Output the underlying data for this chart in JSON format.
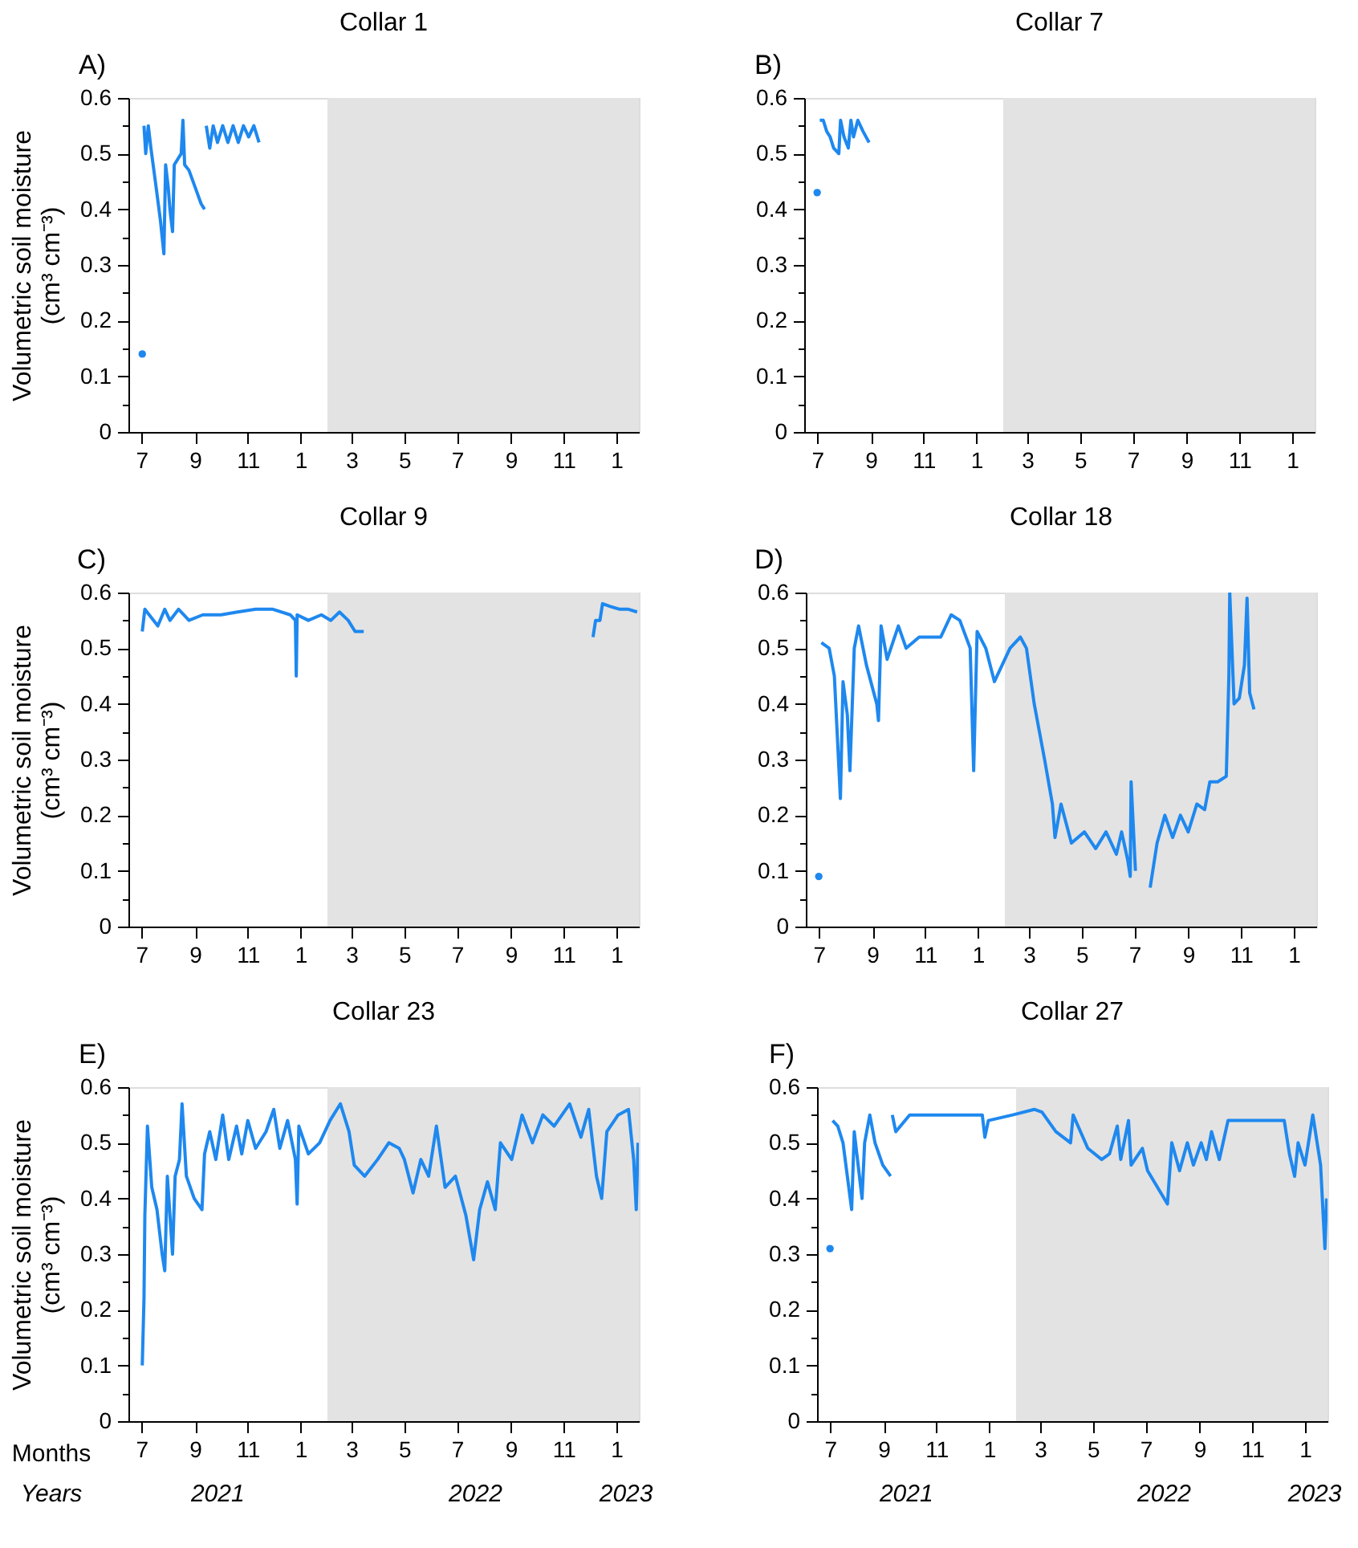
{
  "chart_data": [
    {
      "type": "line",
      "title": "Collar 1",
      "annotations": [
        "A)"
      ],
      "ylabel": "Volumetric soil moisture\n(cm³ cm⁻³)",
      "series": [
        {
          "type": "scatter",
          "color": "#1e88ef",
          "x": [
            "2021-07-02"
          ],
          "values": [
            0.14
          ]
        },
        {
          "type": "line",
          "color": "#1e88ef",
          "x": [
            "2021-07-04",
            "2021-07-06",
            "2021-07-09",
            "2021-07-12",
            "2021-07-18",
            "2021-07-23",
            "2021-07-27",
            "2021-07-29",
            "2021-08-01",
            "2021-08-03",
            "2021-08-06",
            "2021-08-08",
            "2021-08-12",
            "2021-08-16",
            "2021-08-18",
            "2021-08-20",
            "2021-08-25",
            "2021-09-01",
            "2021-09-08",
            "2021-09-12",
            "2021-09-13",
            "2021-09-14",
            "2021-09-18",
            "2021-09-22",
            "2021-09-27",
            "2021-10-03",
            "2021-10-09",
            "2021-10-15",
            "2021-10-21",
            "2021-10-27",
            "2021-11-02",
            "2021-11-08",
            "2021-11-14"
          ],
          "values": [
            0.55,
            0.5,
            0.55,
            0.51,
            0.44,
            0.38,
            0.32,
            0.48,
            0.44,
            0.4,
            0.36,
            0.48,
            0.49,
            0.5,
            0.56,
            0.48,
            0.47,
            0.44,
            0.41,
            0.4,
            null,
            0.55,
            0.51,
            0.55,
            0.52,
            0.55,
            0.52,
            0.55,
            0.52,
            0.55,
            0.53,
            0.55,
            0.52
          ]
        }
      ],
      "bands": [
        {
          "axis": "x",
          "from": "2022-02-01",
          "to": "2023-01-27",
          "color": "#e3e3e3"
        }
      ],
      "xlim": [
        "2021-06-16",
        "2023-01-27"
      ],
      "ylim": [
        0,
        0.6
      ],
      "xticks": [
        {
          "value": "2021-07-01",
          "label": "7"
        },
        {
          "value": "2021-09-01",
          "label": "9"
        },
        {
          "value": "2021-11-01",
          "label": "11"
        },
        {
          "value": "2022-01-01",
          "label": "1"
        },
        {
          "value": "2022-03-01",
          "label": "3"
        },
        {
          "value": "2022-05-01",
          "label": "5"
        },
        {
          "value": "2022-07-01",
          "label": "7"
        },
        {
          "value": "2022-09-01",
          "label": "9"
        },
        {
          "value": "2022-11-01",
          "label": "11"
        },
        {
          "value": "2023-01-01",
          "label": "1"
        }
      ],
      "yticks": [
        0,
        {
          "value": 0.05,
          "label": null
        },
        0.1,
        {
          "value": 0.15,
          "label": null
        },
        0.2,
        {
          "value": 0.25,
          "label": null
        },
        0.3,
        {
          "value": 0.35,
          "label": null
        },
        0.4,
        {
          "value": 0.45,
          "label": null
        },
        0.5,
        {
          "value": 0.55,
          "label": null
        },
        0.6
      ]
    },
    {
      "type": "line",
      "title": "Collar 7",
      "annotations": [
        "B)"
      ],
      "series": [
        {
          "type": "scatter",
          "color": "#1e88ef",
          "x": [
            "2021-07-01"
          ],
          "values": [
            0.43
          ]
        },
        {
          "type": "line",
          "color": "#1e88ef",
          "x": [
            "2021-07-04",
            "2021-07-08",
            "2021-07-12",
            "2021-07-16",
            "2021-07-20",
            "2021-07-26",
            "2021-07-28",
            "2021-08-01",
            "2021-08-06",
            "2021-08-09",
            "2021-08-12",
            "2021-08-17",
            "2021-08-23",
            "2021-08-30"
          ],
          "values": [
            0.56,
            0.56,
            0.54,
            0.53,
            0.51,
            0.5,
            0.56,
            0.53,
            0.51,
            0.56,
            0.53,
            0.56,
            0.54,
            0.52
          ]
        }
      ],
      "bands": [
        {
          "axis": "x",
          "from": "2022-02-01",
          "to": "2023-01-27",
          "color": "#e3e3e3"
        }
      ],
      "xlim": [
        "2021-06-16",
        "2023-01-27"
      ],
      "ylim": [
        0,
        0.6
      ],
      "xticks": [
        {
          "value": "2021-07-01",
          "label": "7"
        },
        {
          "value": "2021-09-01",
          "label": "9"
        },
        {
          "value": "2021-11-01",
          "label": "11"
        },
        {
          "value": "2022-01-01",
          "label": "1"
        },
        {
          "value": "2022-03-01",
          "label": "3"
        },
        {
          "value": "2022-05-01",
          "label": "5"
        },
        {
          "value": "2022-07-01",
          "label": "7"
        },
        {
          "value": "2022-09-01",
          "label": "9"
        },
        {
          "value": "2022-11-01",
          "label": "11"
        },
        {
          "value": "2023-01-01",
          "label": "1"
        }
      ],
      "yticks": [
        0,
        {
          "value": 0.05,
          "label": null
        },
        0.1,
        {
          "value": 0.15,
          "label": null
        },
        0.2,
        {
          "value": 0.25,
          "label": null
        },
        0.3,
        {
          "value": 0.35,
          "label": null
        },
        0.4,
        {
          "value": 0.45,
          "label": null
        },
        0.5,
        {
          "value": 0.55,
          "label": null
        },
        0.6
      ]
    },
    {
      "type": "line",
      "title": "Collar 9",
      "annotations": [
        "C)"
      ],
      "ylabel": "Volumetric soil moisture\n(cm³ cm⁻³)",
      "series": [
        {
          "type": "line",
          "color": "#1e88ef",
          "x": [
            "2021-07-02",
            "2021-07-05",
            "2021-07-10",
            "2021-07-20",
            "2021-07-28",
            "2021-08-03",
            "2021-08-13",
            "2021-08-25",
            "2021-09-10",
            "2021-10-01",
            "2021-10-20",
            "2021-11-10",
            "2021-11-30",
            "2021-12-20",
            "2021-12-26",
            "2021-12-27",
            "2021-12-28",
            "2022-01-10",
            "2022-01-25",
            "2022-02-05",
            "2022-02-15",
            "2022-02-25",
            "2022-03-05",
            "2022-03-15",
            "2022-03-16",
            "2022-12-05",
            "2022-12-08",
            "2022-12-13",
            "2022-12-16",
            "2022-12-25",
            "2023-01-05",
            "2023-01-15",
            "2023-01-25"
          ],
          "values": [
            0.53,
            0.57,
            0.56,
            0.54,
            0.57,
            0.55,
            0.57,
            0.55,
            0.56,
            0.56,
            0.565,
            0.57,
            0.57,
            0.56,
            0.55,
            0.45,
            0.56,
            0.55,
            0.56,
            0.55,
            0.565,
            0.55,
            0.53,
            0.53,
            null,
            0.52,
            0.55,
            0.55,
            0.58,
            0.575,
            0.57,
            0.57,
            0.565
          ]
        }
      ],
      "bands": [
        {
          "axis": "x",
          "from": "2022-02-01",
          "to": "2023-01-27",
          "color": "#e3e3e3"
        }
      ],
      "xlim": [
        "2021-06-16",
        "2023-01-27"
      ],
      "ylim": [
        0,
        0.6
      ],
      "xticks": [
        {
          "value": "2021-07-01",
          "label": "7"
        },
        {
          "value": "2021-09-01",
          "label": "9"
        },
        {
          "value": "2021-11-01",
          "label": "11"
        },
        {
          "value": "2022-01-01",
          "label": "1"
        },
        {
          "value": "2022-03-01",
          "label": "3"
        },
        {
          "value": "2022-05-01",
          "label": "5"
        },
        {
          "value": "2022-07-01",
          "label": "7"
        },
        {
          "value": "2022-09-01",
          "label": "9"
        },
        {
          "value": "2022-11-01",
          "label": "11"
        },
        {
          "value": "2023-01-01",
          "label": "1"
        }
      ],
      "yticks": [
        0,
        {
          "value": 0.05,
          "label": null
        },
        0.1,
        {
          "value": 0.15,
          "label": null
        },
        0.2,
        {
          "value": 0.25,
          "label": null
        },
        0.3,
        {
          "value": 0.35,
          "label": null
        },
        0.4,
        {
          "value": 0.45,
          "label": null
        },
        0.5,
        {
          "value": 0.55,
          "label": null
        },
        0.6
      ]
    },
    {
      "type": "line",
      "title": "Collar 18",
      "annotations": [
        "D)"
      ],
      "series": [
        {
          "type": "scatter",
          "color": "#1e88ef",
          "x": [
            "2021-07-01"
          ],
          "values": [
            0.09
          ]
        },
        {
          "type": "line",
          "color": "#1e88ef",
          "x": [
            "2021-07-04",
            "2021-07-13",
            "2021-07-19",
            "2021-07-26",
            "2021-07-29",
            "2021-08-03",
            "2021-08-06",
            "2021-08-11",
            "2021-08-16",
            "2021-08-25",
            "2021-09-06",
            "2021-09-08",
            "2021-09-11",
            "2021-09-18",
            "2021-10-01",
            "2021-10-10",
            "2021-10-25",
            "2021-11-19",
            "2021-12-01",
            "2021-12-11",
            "2021-12-23",
            "2021-12-27",
            "2021-12-31",
            "2022-01-10",
            "2022-01-20",
            "2022-01-29",
            "2022-02-07",
            "2022-02-19",
            "2022-02-26",
            "2022-03-07",
            "2022-03-19",
            "2022-03-28",
            "2022-03-31",
            "2022-04-07",
            "2022-04-19",
            "2022-05-04",
            "2022-05-17",
            "2022-05-29",
            "2022-06-10",
            "2022-06-16",
            "2022-06-23",
            "2022-06-26",
            "2022-06-27",
            "2022-07-02",
            "2022-07-10",
            "2022-07-19",
            "2022-07-27",
            "2022-08-05",
            "2022-08-14",
            "2022-08-23",
            "2022-09-01",
            "2022-09-11",
            "2022-09-20",
            "2022-09-26",
            "2022-10-05",
            "2022-10-15",
            "2022-10-18",
            "2022-10-19",
            "2022-10-24",
            "2022-10-30",
            "2022-11-05",
            "2022-11-08",
            "2022-11-11",
            "2022-11-16"
          ],
          "values": [
            0.51,
            0.5,
            0.45,
            0.23,
            0.44,
            0.38,
            0.28,
            0.5,
            0.54,
            0.47,
            0.4,
            0.37,
            0.54,
            0.48,
            0.54,
            0.5,
            0.52,
            0.52,
            0.56,
            0.55,
            0.5,
            0.28,
            0.53,
            0.5,
            0.44,
            0.47,
            0.5,
            0.52,
            0.5,
            0.4,
            0.3,
            0.22,
            0.16,
            0.22,
            0.15,
            0.17,
            0.14,
            0.17,
            0.13,
            0.17,
            0.12,
            0.09,
            0.26,
            0.1,
            null,
            0.07,
            0.15,
            0.2,
            0.16,
            0.2,
            0.17,
            0.22,
            0.21,
            0.26,
            0.26,
            0.27,
            0.45,
            0.6,
            0.4,
            0.41,
            0.47,
            0.59,
            0.42,
            0.39
          ]
        }
      ],
      "bands": [
        {
          "axis": "x",
          "from": "2022-02-01",
          "to": "2023-01-27",
          "color": "#e3e3e3"
        }
      ],
      "xlim": [
        "2021-06-16",
        "2023-01-27"
      ],
      "ylim": [
        0,
        0.6
      ],
      "xticks": [
        {
          "value": "2021-07-01",
          "label": "7"
        },
        {
          "value": "2021-09-01",
          "label": "9"
        },
        {
          "value": "2021-11-01",
          "label": "11"
        },
        {
          "value": "2022-01-01",
          "label": "1"
        },
        {
          "value": "2022-03-01",
          "label": "3"
        },
        {
          "value": "2022-05-01",
          "label": "5"
        },
        {
          "value": "2022-07-01",
          "label": "7"
        },
        {
          "value": "2022-09-01",
          "label": "9"
        },
        {
          "value": "2022-11-01",
          "label": "11"
        },
        {
          "value": "2023-01-01",
          "label": "1"
        }
      ],
      "yticks": [
        0,
        {
          "value": 0.05,
          "label": null
        },
        0.1,
        {
          "value": 0.15,
          "label": null
        },
        0.2,
        {
          "value": 0.25,
          "label": null
        },
        0.3,
        {
          "value": 0.35,
          "label": null
        },
        0.4,
        {
          "value": 0.45,
          "label": null
        },
        0.5,
        {
          "value": 0.55,
          "label": null
        },
        0.6
      ]
    },
    {
      "type": "line",
      "title": "Collar 23",
      "annotations": [
        "E)",
        "Months",
        "Years",
        "2021",
        "2022",
        "2023"
      ],
      "ylabel": "Volumetric soil moisture\n(cm³ cm⁻³)",
      "series": [
        {
          "type": "line",
          "color": "#1e88ef",
          "x": [
            "2021-07-02",
            "2021-07-03",
            "2021-07-04",
            "2021-07-05",
            "2021-07-08",
            "2021-07-13",
            "2021-07-19",
            "2021-07-25",
            "2021-07-28",
            "2021-07-31",
            "2021-08-06",
            "2021-08-09",
            "2021-08-14",
            "2021-08-17",
            "2021-08-22",
            "2021-08-31",
            "2021-09-09",
            "2021-09-12",
            "2021-09-18",
            "2021-09-25",
            "2021-10-03",
            "2021-10-10",
            "2021-10-19",
            "2021-10-25",
            "2021-11-01",
            "2021-11-10",
            "2021-11-22",
            "2021-12-01",
            "2021-12-08",
            "2021-12-17",
            "2021-12-26",
            "2021-12-28",
            "2021-12-30",
            "2022-01-10",
            "2022-01-23",
            "2022-02-04",
            "2022-02-16",
            "2022-02-26",
            "2022-03-04",
            "2022-03-16",
            "2022-03-31",
            "2022-04-13",
            "2022-04-25",
            "2022-05-01",
            "2022-05-11",
            "2022-05-20",
            "2022-05-29",
            "2022-06-07",
            "2022-06-17",
            "2022-06-29",
            "2022-07-11",
            "2022-07-20",
            "2022-07-27",
            "2022-08-05",
            "2022-08-14",
            "2022-08-20",
            "2022-09-02",
            "2022-09-14",
            "2022-09-26",
            "2022-10-08",
            "2022-10-21",
            "2022-11-08",
            "2022-11-21",
            "2022-11-30",
            "2022-12-09",
            "2022-12-15",
            "2022-12-21",
            "2023-01-03",
            "2023-01-15",
            "2023-01-21",
            "2023-01-24",
            "2023-01-26"
          ],
          "values": [
            0.1,
            0.16,
            0.22,
            0.37,
            0.53,
            0.42,
            0.38,
            0.3,
            0.27,
            0.44,
            0.3,
            0.44,
            0.47,
            0.57,
            0.44,
            0.4,
            0.38,
            0.48,
            0.52,
            0.47,
            0.55,
            0.47,
            0.53,
            0.48,
            0.54,
            0.49,
            0.52,
            0.56,
            0.49,
            0.54,
            0.47,
            0.39,
            0.53,
            0.48,
            0.5,
            0.54,
            0.57,
            0.52,
            0.46,
            0.44,
            0.47,
            0.5,
            0.49,
            0.47,
            0.41,
            0.47,
            0.44,
            0.53,
            0.42,
            0.44,
            0.37,
            0.29,
            0.38,
            0.43,
            0.38,
            0.5,
            0.47,
            0.55,
            0.5,
            0.55,
            0.53,
            0.57,
            0.51,
            0.56,
            0.44,
            0.4,
            0.52,
            0.55,
            0.56,
            0.47,
            0.38,
            0.5
          ]
        }
      ],
      "bands": [
        {
          "axis": "x",
          "from": "2022-02-01",
          "to": "2023-01-27",
          "color": "#e3e3e3"
        }
      ],
      "xlim": [
        "2021-06-16",
        "2023-01-27"
      ],
      "ylim": [
        0,
        0.6
      ],
      "xticks": [
        {
          "value": "2021-07-01",
          "label": "7"
        },
        {
          "value": "2021-09-01",
          "label": "9"
        },
        {
          "value": "2021-11-01",
          "label": "11"
        },
        {
          "value": "2022-01-01",
          "label": "1"
        },
        {
          "value": "2022-03-01",
          "label": "3"
        },
        {
          "value": "2022-05-01",
          "label": "5"
        },
        {
          "value": "2022-07-01",
          "label": "7"
        },
        {
          "value": "2022-09-01",
          "label": "9"
        },
        {
          "value": "2022-11-01",
          "label": "11"
        },
        {
          "value": "2023-01-01",
          "label": "1"
        }
      ],
      "yticks": [
        0,
        {
          "value": 0.05,
          "label": null
        },
        0.1,
        {
          "value": 0.15,
          "label": null
        },
        0.2,
        {
          "value": 0.25,
          "label": null
        },
        0.3,
        {
          "value": 0.35,
          "label": null
        },
        0.4,
        {
          "value": 0.45,
          "label": null
        },
        0.5,
        {
          "value": 0.55,
          "label": null
        },
        0.6
      ]
    },
    {
      "type": "line",
      "title": "Collar 27",
      "annotations": [
        "F)",
        "2021",
        "2022",
        "2023"
      ],
      "series": [
        {
          "type": "scatter",
          "color": "#1e88ef",
          "x": [
            "2021-07-01"
          ],
          "values": [
            0.31
          ]
        },
        {
          "type": "line",
          "color": "#1e88ef",
          "x": [
            "2021-07-04",
            "2021-07-10",
            "2021-07-16",
            "2021-07-26",
            "2021-07-29",
            "2021-08-07",
            "2021-08-10",
            "2021-08-16",
            "2021-08-22",
            "2021-08-31",
            "2021-09-09",
            "2021-09-10",
            "2021-09-11",
            "2021-09-15",
            "2021-10-01",
            "2021-10-25",
            "2021-12-02",
            "2021-12-24",
            "2021-12-27",
            "2021-12-31",
            "2022-01-28",
            "2022-02-22",
            "2022-03-03",
            "2022-03-19",
            "2022-04-05",
            "2022-04-08",
            "2022-04-25",
            "2022-05-11",
            "2022-05-20",
            "2022-05-29",
            "2022-06-02",
            "2022-06-11",
            "2022-06-14",
            "2022-06-27",
            "2022-07-03",
            "2022-07-26",
            "2022-07-31",
            "2022-08-09",
            "2022-08-18",
            "2022-08-25",
            "2022-09-03",
            "2022-09-09",
            "2022-09-15",
            "2022-09-24",
            "2022-10-04",
            "2022-10-22",
            "2022-11-10",
            "2022-12-08",
            "2022-12-14",
            "2022-12-20",
            "2022-12-24",
            "2023-01-01",
            "2023-01-10",
            "2023-01-19",
            "2023-01-24",
            "2023-01-26"
          ],
          "values": [
            0.54,
            0.53,
            0.5,
            0.38,
            0.52,
            0.4,
            0.5,
            0.55,
            0.5,
            0.46,
            0.44,
            null,
            0.55,
            0.52,
            0.55,
            0.55,
            0.55,
            0.55,
            0.51,
            0.54,
            0.55,
            0.56,
            0.555,
            0.52,
            0.5,
            0.55,
            0.49,
            0.47,
            0.48,
            0.53,
            0.47,
            0.54,
            0.46,
            0.49,
            0.45,
            0.39,
            0.5,
            0.45,
            0.5,
            0.46,
            0.5,
            0.47,
            0.52,
            0.47,
            0.54,
            0.54,
            0.54,
            0.54,
            0.48,
            0.44,
            0.5,
            0.46,
            0.55,
            0.46,
            0.31,
            0.4
          ]
        }
      ],
      "bands": [
        {
          "axis": "x",
          "from": "2022-02-01",
          "to": "2023-01-27",
          "color": "#e3e3e3"
        }
      ],
      "xlim": [
        "2021-06-16",
        "2023-01-27"
      ],
      "ylim": [
        0,
        0.6
      ],
      "xticks": [
        {
          "value": "2021-07-01",
          "label": "7"
        },
        {
          "value": "2021-09-01",
          "label": "9"
        },
        {
          "value": "2021-11-01",
          "label": "11"
        },
        {
          "value": "2022-01-01",
          "label": "1"
        },
        {
          "value": "2022-03-01",
          "label": "3"
        },
        {
          "value": "2022-05-01",
          "label": "5"
        },
        {
          "value": "2022-07-01",
          "label": "7"
        },
        {
          "value": "2022-09-01",
          "label": "9"
        },
        {
          "value": "2022-11-01",
          "label": "11"
        },
        {
          "value": "2023-01-01",
          "label": "1"
        }
      ],
      "yticks": [
        0,
        {
          "value": 0.05,
          "label": null
        },
        0.1,
        {
          "value": 0.15,
          "label": null
        },
        0.2,
        {
          "value": 0.25,
          "label": null
        },
        0.3,
        {
          "value": 0.35,
          "label": null
        },
        0.4,
        {
          "value": 0.45,
          "label": null
        },
        0.5,
        {
          "value": 0.55,
          "label": null
        },
        0.6
      ]
    }
  ]
}
